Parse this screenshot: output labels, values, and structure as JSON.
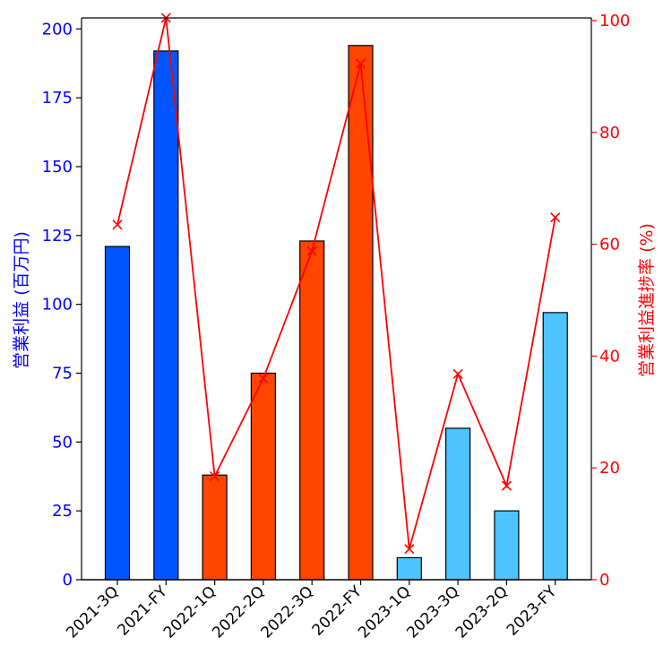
{
  "chart_data": {
    "type": "bar",
    "categories": [
      "2021-3Q",
      "2021-FY",
      "2022-1Q",
      "2022-2Q",
      "2022-3Q",
      "2022-FY",
      "2023-1Q",
      "2023-3Q",
      "2023-2Q",
      "2023-FY"
    ],
    "series": [
      {
        "type": "bar",
        "axis": "left",
        "values": [
          121,
          192,
          38,
          75,
          123,
          194,
          8,
          55,
          25,
          97
        ],
        "colors": [
          "#0055ff",
          "#0055ff",
          "#ff4500",
          "#ff4500",
          "#ff4500",
          "#ff4500",
          "#4dc3ff",
          "#4dc3ff",
          "#4dc3ff",
          "#4dc3ff"
        ]
      },
      {
        "type": "line",
        "axis": "right",
        "marker": "x",
        "color": "#ff0000",
        "values": [
          63.5,
          100.5,
          18.5,
          36,
          58.8,
          92.3,
          5.5,
          36.8,
          16.8,
          64.8
        ]
      }
    ],
    "ylabel": "営業利益 (百万円)",
    "ylabel_color": "#0000ff",
    "y2label": "営業利益進捗率 (%)",
    "y2label_color": "#ff0000",
    "ylim": [
      0,
      204
    ],
    "y2lim": [
      0,
      100
    ],
    "yticks": [
      "0",
      "25",
      "50",
      "75",
      "100",
      "125",
      "150",
      "175",
      "200"
    ],
    "y2ticks": [
      "0",
      "20",
      "40",
      "60",
      "80",
      "100"
    ],
    "grid": false,
    "legend": "none"
  }
}
